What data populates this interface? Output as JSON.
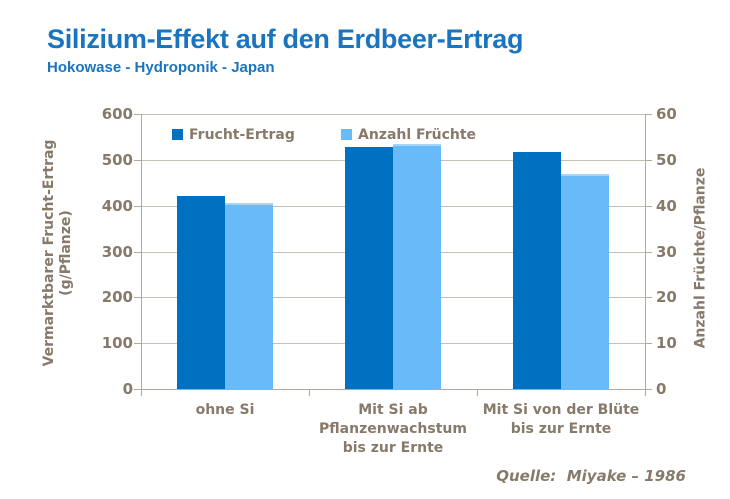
{
  "slide": {
    "title": "Silizium-Effekt auf den Erdbeer-Ertrag",
    "subtitle": "Hokowase - Hydroponik - Japan",
    "source": "Quelle:  Miyake – 1986"
  },
  "colors": {
    "title_blue": "#1B75BE",
    "axis_text": "#877A6A",
    "gridline": "#C6BFB5",
    "axis_line": "#B2A99D",
    "series1": "#0070C0",
    "series2": "#69BAF9",
    "background": "#FFFFFF"
  },
  "chart_data": {
    "type": "bar",
    "title": "Silizium-Effekt auf den Erdbeer-Ertrag",
    "subtitle": "Hokowase - Hydroponik - Japan",
    "categories": [
      "ohne Si",
      "Mit Si ab\nPflanzenwachstum\nbis zur Ernte",
      "Mit Si von der Blüte\nbis zur Ernte"
    ],
    "series": [
      {
        "name": "Frucht-Ertrag",
        "axis": "left",
        "color": "#0070C0",
        "values": [
          420,
          527,
          516
        ]
      },
      {
        "name": "Anzahl Früchte",
        "axis": "right",
        "color": "#69BAF9",
        "values": [
          40.5,
          53.5,
          47
        ]
      }
    ],
    "left_axis": {
      "label_line1": "Vermarktbarer Frucht-Ertrag",
      "label_line2": "(g/Pflanze)",
      "min": 0,
      "max": 600,
      "step": 100,
      "ticks": [
        0,
        100,
        200,
        300,
        400,
        500,
        600
      ]
    },
    "right_axis": {
      "label": "Anzahl Früchte/Pflanze",
      "min": 0,
      "max": 60,
      "step": 10,
      "ticks": [
        0,
        10,
        20,
        30,
        40,
        50,
        60
      ]
    },
    "legend_position": "top-inside",
    "grid": true,
    "source": "Quelle:  Miyake – 1986"
  }
}
